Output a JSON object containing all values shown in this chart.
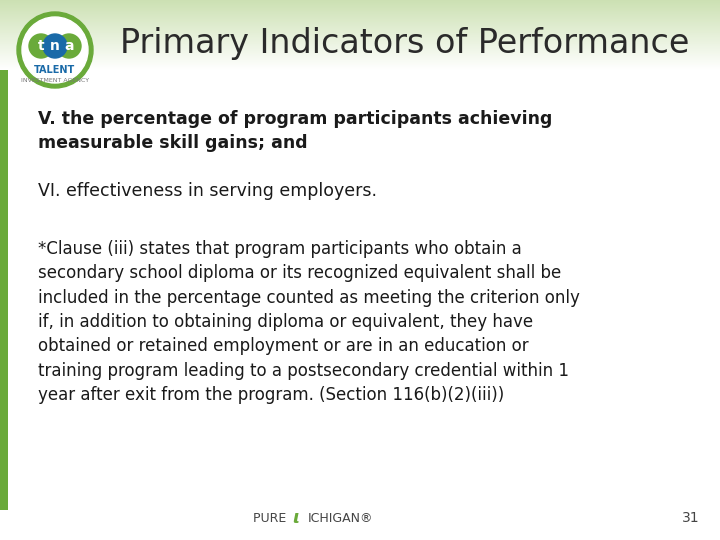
{
  "title": "Primary Indicators of Performance",
  "title_fontsize": 24,
  "title_color": "#2a2a2a",
  "bg_color": "#ffffff",
  "left_bar_color": "#6aaa3a",
  "text1_bold": "V. the percentage of program participants achieving\nmeasurable skill gains; and",
  "text1_fontsize": 12.5,
  "text1_color": "#1a1a1a",
  "text2": "VI. effectiveness in serving employers.",
  "text2_fontsize": 12.5,
  "text2_color": "#1a1a1a",
  "text3": "*Clause (iii) states that program participants who obtain a\nsecondary school diploma or its recognized equivalent shall be\nincluded in the percentage counted as meeting the criterion only\nif, in addition to obtaining diploma or equivalent, they have\nobtained or retained employment or are in an education or\ntraining program leading to a postsecondary credential within 1\nyear after exit from the program. (Section 116(b)(2)(iii))",
  "text3_fontsize": 12,
  "text3_color": "#1a1a1a",
  "footer_page": "31",
  "footer_fontsize": 10,
  "footer_color": "#444444",
  "pure_michigan_color": "#444444",
  "michigan_m_color": "#6aaa3a",
  "header_top_color": "#c8dfa8",
  "logo_green": "#6aaa3a",
  "logo_blue": "#1a6aa8",
  "logo_teal": "#2a9090"
}
